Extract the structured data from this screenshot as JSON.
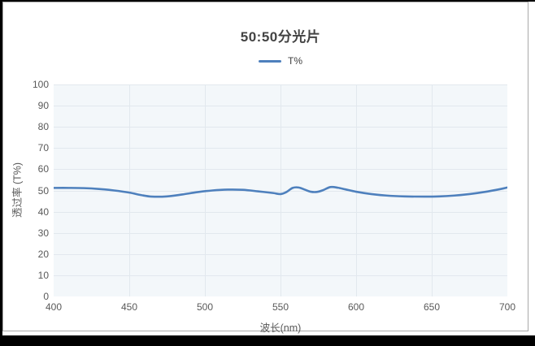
{
  "frame": {
    "outer_background": "#000000",
    "panel_background": "#ffffff",
    "panel_border_color": "#a9a9a9"
  },
  "text_colors": {
    "title": "#434343",
    "ticks": "#595959",
    "legend": "#404040"
  },
  "chart_data": {
    "type": "line",
    "title": "50:50分光片",
    "xlabel": "波长(nm)",
    "ylabel": "透过率 (T%)",
    "xlim": [
      400,
      700
    ],
    "ylim": [
      0,
      100
    ],
    "x_ticks": [
      400,
      450,
      500,
      550,
      600,
      650,
      700
    ],
    "y_ticks": [
      0,
      10,
      20,
      30,
      40,
      50,
      60,
      70,
      80,
      90,
      100
    ],
    "grid": true,
    "legend_position": "top-center",
    "plot_background": "#f3f7fa",
    "grid_color": "#e2e8ee",
    "series": [
      {
        "name": "T%",
        "color": "#4e80bd",
        "line_width": 2.6,
        "x": [
          400,
          410,
          420,
          430,
          440,
          450,
          458,
          465,
          475,
          485,
          495,
          505,
          515,
          525,
          535,
          545,
          550,
          554,
          558,
          562,
          566,
          570,
          574,
          578,
          583,
          588,
          593,
          600,
          610,
          620,
          632,
          645,
          655,
          665,
          675,
          685,
          695,
          700
        ],
        "values": [
          51.2,
          51.2,
          51.1,
          50.7,
          50.0,
          49.0,
          47.8,
          47.1,
          47.2,
          48.1,
          49.2,
          50.0,
          50.4,
          50.3,
          49.6,
          48.8,
          48.3,
          49.3,
          51.2,
          51.4,
          50.4,
          49.4,
          49.3,
          50.1,
          51.6,
          51.3,
          50.5,
          49.4,
          48.3,
          47.6,
          47.2,
          47.1,
          47.2,
          47.6,
          48.3,
          49.3,
          50.6,
          51.4
        ]
      }
    ]
  }
}
